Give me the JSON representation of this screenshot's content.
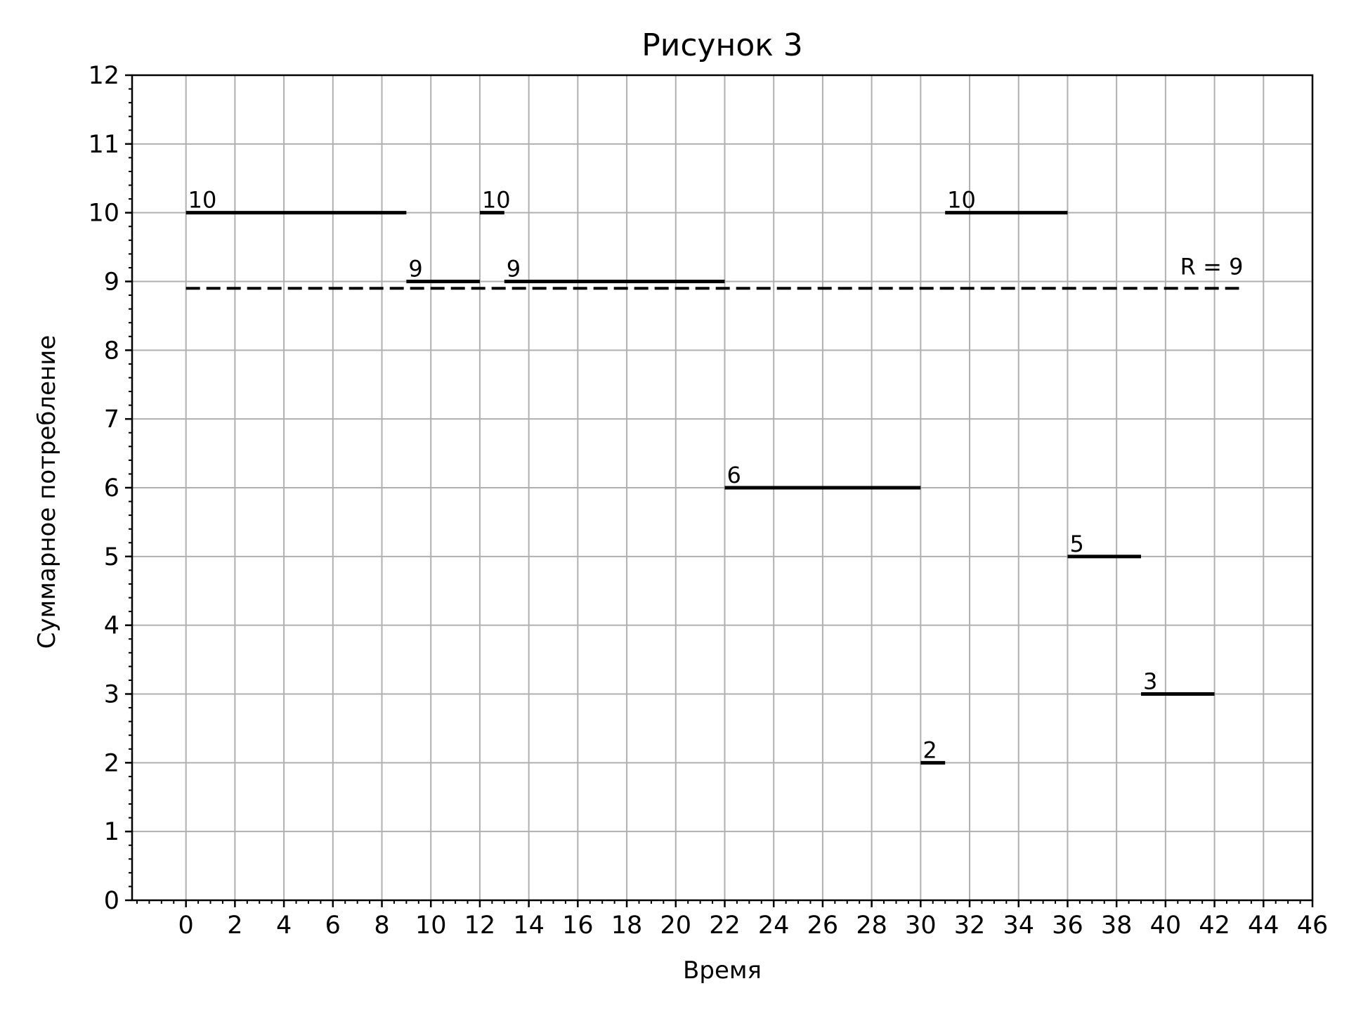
{
  "chart_data": {
    "type": "line",
    "title": "Рисунок 3",
    "xlabel": "Время",
    "ylabel": "Суммарное потребление",
    "xlim": [
      -2.2,
      46
    ],
    "ylim": [
      0,
      12
    ],
    "xticks": [
      0,
      2,
      4,
      6,
      8,
      10,
      12,
      14,
      16,
      18,
      20,
      22,
      24,
      26,
      28,
      30,
      32,
      34,
      36,
      38,
      40,
      42,
      44,
      46
    ],
    "yticks": [
      0,
      1,
      2,
      3,
      4,
      5,
      6,
      7,
      8,
      9,
      10,
      11,
      12
    ],
    "x_minor_step": 0.5,
    "y_minor_step": 0.2,
    "grid": true,
    "segments": [
      {
        "x0": 0,
        "x1": 9,
        "y": 10,
        "label": "10"
      },
      {
        "x0": 9,
        "x1": 12,
        "y": 9,
        "label": "9"
      },
      {
        "x0": 12,
        "x1": 13,
        "y": 10,
        "label": "10"
      },
      {
        "x0": 13,
        "x1": 22,
        "y": 9,
        "label": "9"
      },
      {
        "x0": 22,
        "x1": 30,
        "y": 6,
        "label": "6"
      },
      {
        "x0": 30,
        "x1": 31,
        "y": 2,
        "label": "2"
      },
      {
        "x0": 31,
        "x1": 36,
        "y": 10,
        "label": "10"
      },
      {
        "x0": 36,
        "x1": 39,
        "y": 5,
        "label": "5"
      },
      {
        "x0": 39,
        "x1": 42,
        "y": 3,
        "label": "3"
      }
    ],
    "limit_line": {
      "y": 8.9,
      "x0": 0,
      "x1": 43,
      "label": "R = 9",
      "style": "dashed",
      "color": "#000000"
    },
    "colors": {
      "segment": "#000000",
      "grid": "#b0b0b0"
    }
  }
}
